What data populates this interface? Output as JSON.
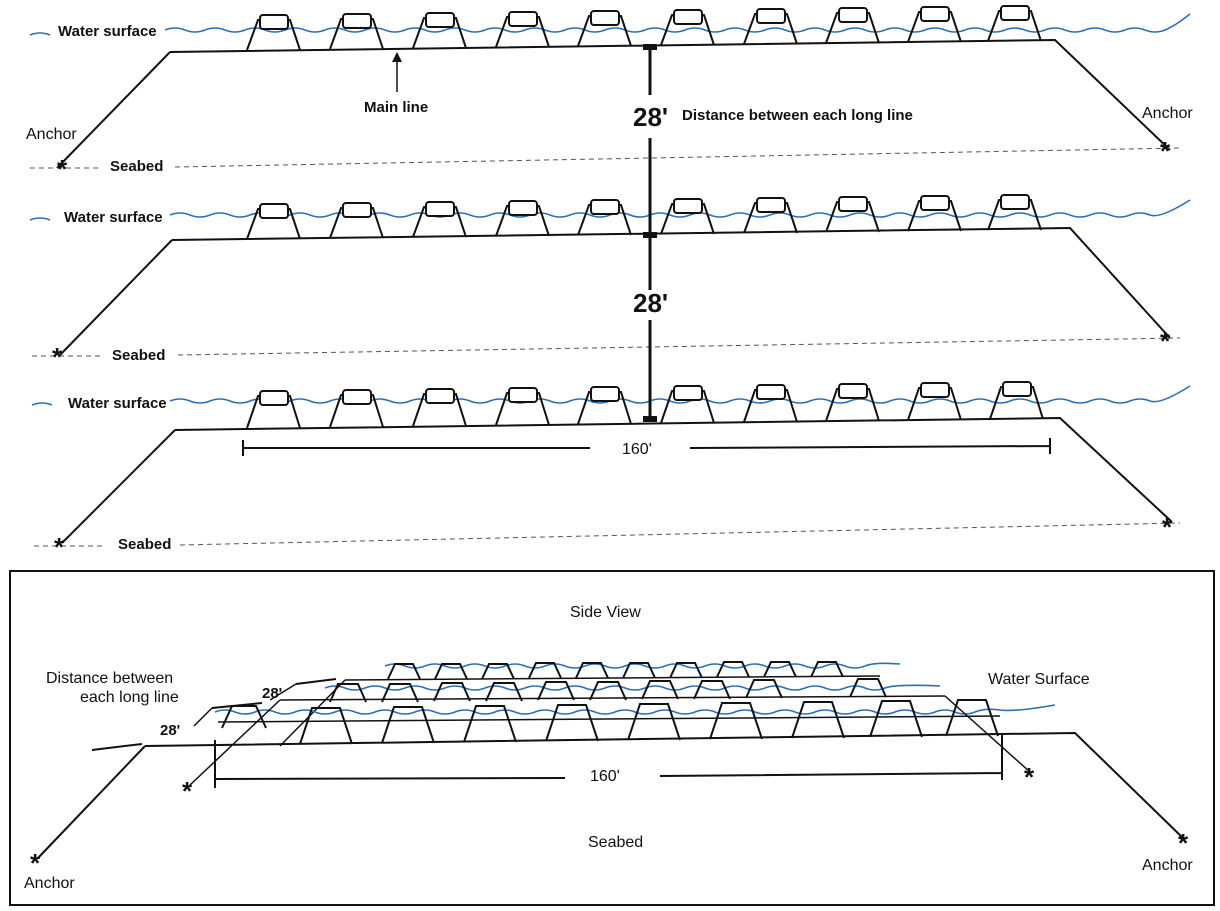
{
  "top_view": {
    "water_label": "Water surface",
    "seabed_label": "Seabed",
    "anchor_label": "Anchor",
    "main_line_label": "Main line",
    "spacing_value": "28'",
    "spacing_caption": "Distance between each long line",
    "length_label": "160'",
    "rows": 3,
    "cages_per_row": 10
  },
  "side_view": {
    "title": "Side View",
    "spacing_caption_line1": "Distance between",
    "spacing_caption_line2": "each long line",
    "spacing_value": "28'",
    "water_label": "Water Surface",
    "length_label": "160'",
    "seabed_label": "Seabed",
    "anchor_label": "Anchor"
  },
  "colors": {
    "water": "#2b6fb6",
    "line": "#111111",
    "seabed": "#555555"
  }
}
